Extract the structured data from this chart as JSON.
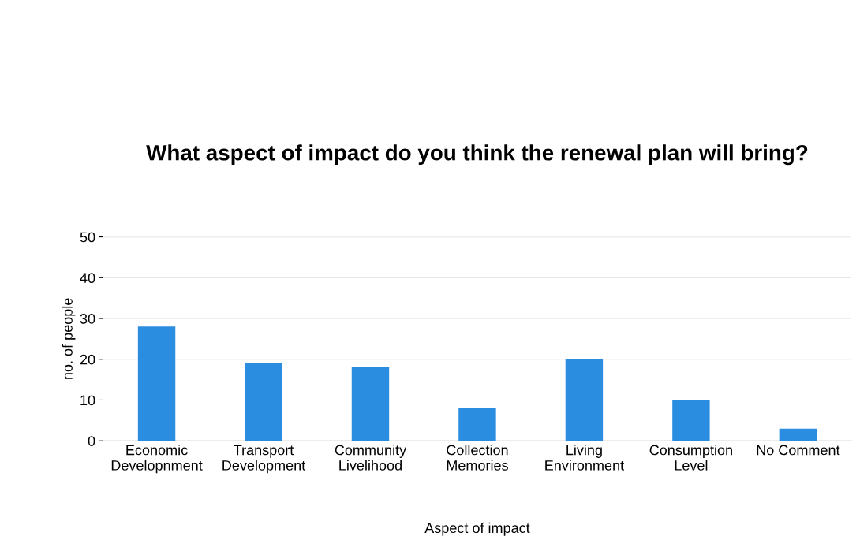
{
  "chart_data": {
    "type": "bar",
    "title": "What aspect of impact do you think the renewal plan will bring?",
    "xlabel": "Aspect of impact",
    "ylabel": "no. of people",
    "categories": [
      "Economic\nDevelopnment",
      "Transport\nDevelopment",
      "Community\nLivelihood",
      "Collection\nMemories",
      "Living\nEnvironment",
      "Consumption\nLevel",
      "No Comment"
    ],
    "values": [
      28,
      19,
      18,
      8,
      20,
      10,
      3
    ],
    "color": "#2b8de0",
    "ylim": [
      0,
      50
    ],
    "yticks": [
      0,
      10,
      20,
      30,
      40,
      50
    ],
    "grid": "y",
    "legend": false
  }
}
